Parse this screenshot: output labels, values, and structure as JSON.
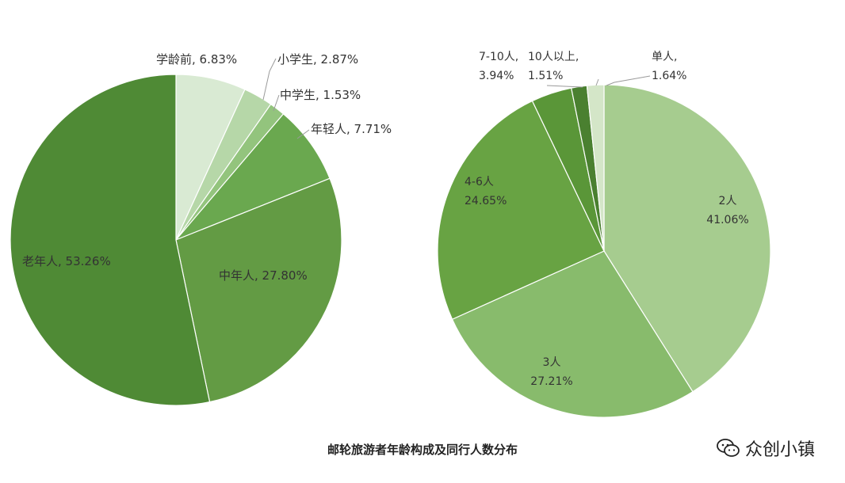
{
  "chart_data": [
    {
      "type": "pie",
      "slices": [
        {
          "label": "学龄前, 6.83%",
          "value": 6.83,
          "color": "#d9ead3"
        },
        {
          "label": "小学生, 2.87%",
          "value": 2.87,
          "color": "#b6d7a8"
        },
        {
          "label": "中学生, 1.53%",
          "value": 1.53,
          "color": "#93c47d"
        },
        {
          "label": "年轻人, 7.71%",
          "value": 7.71,
          "color": "#6aa84f"
        },
        {
          "label": "中年人, 27.80%",
          "value": 27.8,
          "color": "#639b44"
        },
        {
          "label": "老年人, 53.26%",
          "value": 53.26,
          "color": "#4f8a35"
        }
      ]
    },
    {
      "type": "pie",
      "slices": [
        {
          "label": "2人\n41.06%",
          "value": 41.06,
          "color": "#a6cc8f"
        },
        {
          "label": "3人\n27.21%",
          "value": 27.21,
          "color": "#88bb6c"
        },
        {
          "label": "4-6人\n24.65%",
          "value": 24.65,
          "color": "#68a343"
        },
        {
          "label": "7-10人,\n3.94%",
          "value": 3.94,
          "color": "#5a9638"
        },
        {
          "label": "10人以上,\n1.51%",
          "value": 1.51,
          "color": "#4a8030"
        },
        {
          "label": "单人,\n1.64%",
          "value": 1.64,
          "color": "#d4e6c8"
        }
      ]
    }
  ],
  "caption": "邮轮旅游者年龄构成及同行人数分布",
  "watermark": "众创小镇"
}
